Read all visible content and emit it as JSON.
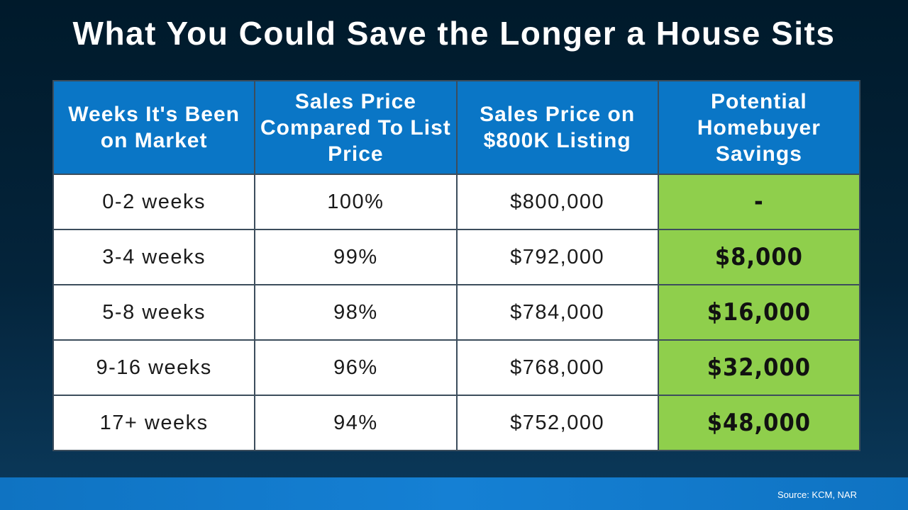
{
  "title": "What You Could Save the Longer a House Sits",
  "chart_data": {
    "type": "table",
    "columns": [
      "Weeks It's Been on Market",
      "Sales Price Compared To List Price",
      "Sales Price on $800K Listing",
      "Potential Homebuyer Savings"
    ],
    "rows": [
      [
        "0-2 weeks",
        "100%",
        "$800,000",
        "-"
      ],
      [
        "3-4 weeks",
        "99%",
        "$792,000",
        "$8,000"
      ],
      [
        "5-8 weeks",
        "98%",
        "$784,000",
        "$16,000"
      ],
      [
        "9-16 weeks",
        "96%",
        "$768,000",
        "$32,000"
      ],
      [
        "17+ weeks",
        "94%",
        "$752,000",
        "$48,000"
      ]
    ]
  },
  "colors": {
    "header_bg": "#0a76c6",
    "savings_bg": "#8fcf4c",
    "background": "#04243b"
  },
  "source": "Source: KCM, NAR"
}
